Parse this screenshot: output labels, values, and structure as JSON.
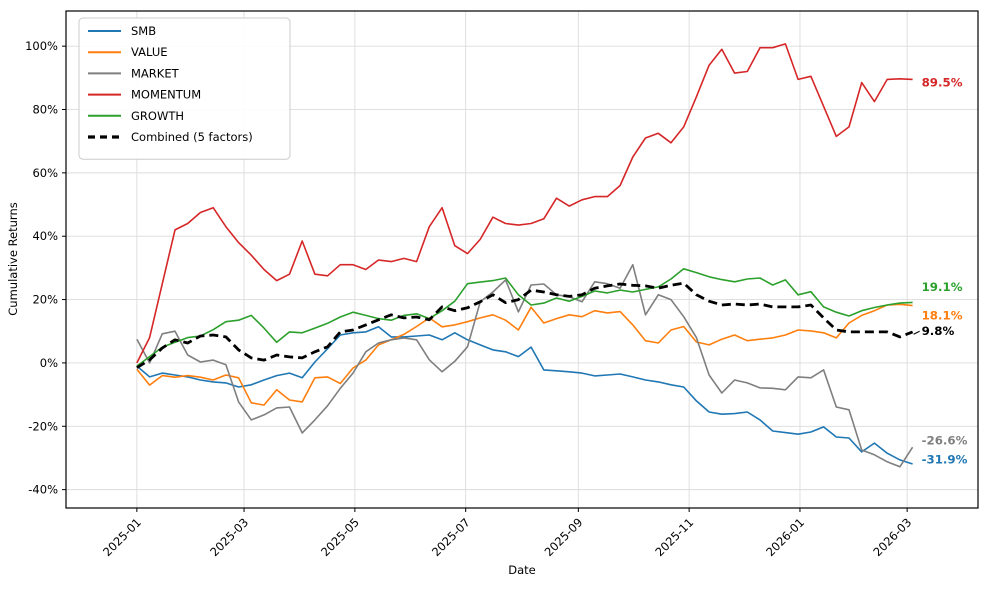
{
  "chart_data": {
    "type": "line",
    "title": "",
    "xlabel": "Date",
    "ylabel": "Cumulative Returns",
    "grid": true,
    "legend_position": "top-left",
    "ylim": [
      -45.8,
      111.1
    ],
    "y_ticks": [
      -40,
      -20,
      0,
      20,
      40,
      60,
      80,
      100
    ],
    "y_tick_suffix": "%",
    "x_ticks": [
      {
        "label": "2025-01",
        "date": "2025-01-01"
      },
      {
        "label": "2025-03",
        "date": "2025-03-01"
      },
      {
        "label": "2025-05",
        "date": "2025-05-01"
      },
      {
        "label": "2025-07",
        "date": "2025-07-01"
      },
      {
        "label": "2025-09",
        "date": "2025-09-01"
      },
      {
        "label": "2025-11",
        "date": "2025-11-01"
      },
      {
        "label": "2026-01",
        "date": "2026-01-01"
      },
      {
        "label": "2026-03",
        "date": "2026-03-01"
      }
    ],
    "x": [
      "2025-01-01",
      "2025-01-08",
      "2025-01-15",
      "2025-01-22",
      "2025-01-29",
      "2025-02-05",
      "2025-02-12",
      "2025-02-19",
      "2025-02-26",
      "2025-03-05",
      "2025-03-12",
      "2025-03-19",
      "2025-03-26",
      "2025-04-02",
      "2025-04-09",
      "2025-04-16",
      "2025-04-23",
      "2025-04-30",
      "2025-05-07",
      "2025-05-14",
      "2025-05-21",
      "2025-05-28",
      "2025-06-04",
      "2025-06-11",
      "2025-06-18",
      "2025-06-25",
      "2025-07-02",
      "2025-07-09",
      "2025-07-16",
      "2025-07-23",
      "2025-07-30",
      "2025-08-06",
      "2025-08-13",
      "2025-08-20",
      "2025-08-27",
      "2025-09-03",
      "2025-09-10",
      "2025-09-17",
      "2025-09-24",
      "2025-10-01",
      "2025-10-08",
      "2025-10-15",
      "2025-10-22",
      "2025-10-29",
      "2025-11-05",
      "2025-11-12",
      "2025-11-19",
      "2025-11-26",
      "2025-12-03",
      "2025-12-10",
      "2025-12-17",
      "2025-12-24",
      "2025-12-31",
      "2026-01-07",
      "2026-01-14",
      "2026-01-21",
      "2026-01-28",
      "2026-02-04",
      "2026-02-11",
      "2026-02-18",
      "2026-02-25",
      "2026-03-04"
    ],
    "series": [
      {
        "name": "SMB",
        "color": "#1f77b4",
        "dash": "",
        "width": 1.6,
        "final_label": "-31.9%",
        "values": [
          -1,
          -4.4,
          -3.2,
          -3.8,
          -4.4,
          -5.4,
          -6,
          -6.3,
          -7.6,
          -6.9,
          -5.4,
          -4,
          -3.2,
          -4.7,
          0.3,
          4.5,
          8.8,
          9.5,
          9.8,
          11.4,
          8.2,
          8.2,
          8.5,
          8.8,
          7.3,
          9.5,
          7.3,
          5.7,
          4.1,
          3.5,
          2,
          5,
          -2.2,
          -2.5,
          -2.8,
          -3.2,
          -4.1,
          -3.8,
          -3.5,
          -4.4,
          -5.4,
          -6,
          -6.9,
          -7.6,
          -12,
          -15.5,
          -16.2,
          -16,
          -15.5,
          -18,
          -21.5,
          -22,
          -22.5,
          -21.8,
          -20.2,
          -23.4,
          -23.7,
          -28.1,
          -25.3,
          -28.5,
          -30.6,
          -31.9
        ]
      },
      {
        "name": "VALUE",
        "color": "#ff7f0e",
        "dash": "",
        "width": 1.6,
        "final_label": "18.1%",
        "values": [
          -2,
          -7,
          -4,
          -4.5,
          -4,
          -4.5,
          -5.4,
          -3.8,
          -4.7,
          -12.6,
          -13.3,
          -8.5,
          -11.7,
          -12.3,
          -4.7,
          -4.4,
          -6.5,
          -1.6,
          0.9,
          5.7,
          7.3,
          9,
          11.5,
          14.2,
          11.4,
          12,
          13,
          14.2,
          15.2,
          13.5,
          10.4,
          17.6,
          12.6,
          14,
          15.2,
          14.6,
          16.5,
          15.8,
          16.2,
          12,
          7,
          6.3,
          10.4,
          11.5,
          6.6,
          5.7,
          7.5,
          8.8,
          7,
          7.5,
          7.9,
          8.8,
          10.4,
          10.1,
          9.5,
          7.9,
          12.6,
          15,
          16.5,
          18.3,
          18.5,
          18.1
        ]
      },
      {
        "name": "MARKET",
        "color": "#7f7f7f",
        "dash": "",
        "width": 1.6,
        "final_label": "-26.6%",
        "values": [
          7.5,
          0,
          9.2,
          10,
          2.5,
          0.3,
          0.9,
          -0.6,
          -12.3,
          -18,
          -16.4,
          -14.2,
          -13.9,
          -22.1,
          -18,
          -13.5,
          -8,
          -3.2,
          3.5,
          6.3,
          7.3,
          7.9,
          7.3,
          1,
          -2.8,
          0.5,
          5.1,
          19.3,
          22.4,
          26.2,
          16.1,
          24.6,
          24.9,
          21.5,
          20.9,
          19.3,
          25.6,
          25,
          23.6,
          31,
          15.2,
          21.5,
          20,
          14.6,
          8,
          -3.8,
          -9.5,
          -5.4,
          -6.3,
          -7.9,
          -8,
          -8.5,
          -4.4,
          -4.7,
          -2.2,
          -13.9,
          -14.8,
          -27.5,
          -29,
          -31.2,
          -32.8,
          -26.6
        ]
      },
      {
        "name": "MOMENTUM",
        "color": "#d62728",
        "dash": "",
        "width": 1.6,
        "final_label": "89.5%",
        "values": [
          0,
          8,
          25,
          42,
          44,
          47.5,
          49,
          43,
          38,
          34,
          29.5,
          26,
          28,
          38.5,
          28,
          27.5,
          31,
          31,
          29.5,
          32.5,
          32,
          33,
          32,
          43,
          49,
          37,
          34.5,
          39,
          46,
          44,
          43.5,
          44,
          45.5,
          52,
          49.5,
          51.5,
          52.5,
          52.5,
          56,
          65,
          71,
          72.5,
          69.5,
          74.5,
          84,
          94,
          99,
          91.5,
          92,
          99.5,
          99.5,
          100.7,
          89.5,
          90.5,
          81,
          71.5,
          74.5,
          88.5,
          82.5,
          89.5,
          89.7,
          89.5
        ]
      },
      {
        "name": "GROWTH",
        "color": "#2ca02c",
        "dash": "",
        "width": 1.6,
        "final_label": "19.1%",
        "values": [
          -1,
          2,
          5,
          6.5,
          8,
          8.5,
          10.5,
          13,
          13.5,
          15,
          11,
          6.5,
          9.8,
          9.5,
          11,
          12.5,
          14.5,
          16,
          15,
          14,
          13.5,
          15,
          15.5,
          14,
          16.5,
          19.5,
          25,
          25.5,
          26,
          26.8,
          21.5,
          18.3,
          18.9,
          20.5,
          19.5,
          21,
          22.7,
          22.1,
          23,
          22.4,
          23.2,
          24,
          26.5,
          29.7,
          28.5,
          27.2,
          26.3,
          25.6,
          26.5,
          26.8,
          24.6,
          26.2,
          21.5,
          22.5,
          17.7,
          16,
          14.8,
          16.5,
          17.5,
          18.3,
          18.9,
          19.1
        ]
      },
      {
        "name": "Combined (5 factors)",
        "color": "#000000",
        "dash": "9 5",
        "width": 2.8,
        "final_label": "9.8%",
        "values": [
          -1.5,
          1,
          4.7,
          7.3,
          6.3,
          8.5,
          8.8,
          8.2,
          4.1,
          1.6,
          0.9,
          2.5,
          1.9,
          1.6,
          3.5,
          5.1,
          9.8,
          10.4,
          12,
          13.6,
          15.2,
          14.2,
          14.5,
          13.6,
          17.7,
          16.5,
          17.4,
          19.3,
          21.5,
          19,
          20,
          23,
          22.4,
          21.5,
          21,
          21.5,
          23.6,
          24.3,
          24.9,
          24.5,
          24.3,
          23.6,
          24.5,
          25.2,
          21.5,
          19.5,
          18.3,
          18.6,
          18.3,
          18.6,
          17.7,
          17.7,
          17.7,
          18.3,
          14.2,
          10.4,
          9.8,
          9.8,
          9.8,
          9.8,
          8.2,
          9.8
        ]
      }
    ],
    "legend_entries": [
      "SMB",
      "VALUE",
      "MARKET",
      "MOMENTUM",
      "GROWTH",
      "Combined (5 factors)"
    ],
    "annotations": [
      {
        "text": "89.5%",
        "color": "#d62728",
        "y": 88.5,
        "leader": false
      },
      {
        "text": "19.1%",
        "color": "#2ca02c",
        "y": 24.0,
        "leader": false
      },
      {
        "text": "18.1%",
        "color": "#ff7f0e",
        "y": 15.0,
        "leader": false
      },
      {
        "text": "9.8%",
        "color": "#000000",
        "y": 10.0,
        "leader": true
      },
      {
        "text": "-26.6%",
        "color": "#7f7f7f",
        "y": -24.5,
        "leader": false
      },
      {
        "text": "-31.9%",
        "color": "#1f77b4",
        "y": -30.5,
        "leader": false
      }
    ],
    "colors": {
      "grid": "#dcdcdc",
      "spine": "#000000",
      "legend_border": "#cccccc",
      "background": "#ffffff"
    }
  }
}
